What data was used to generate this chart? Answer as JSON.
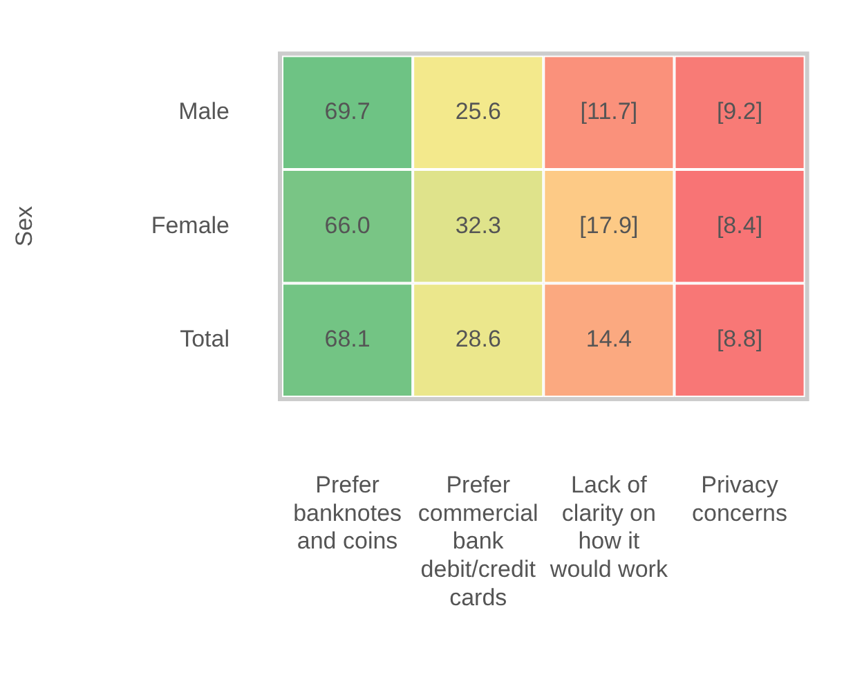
{
  "chart_data": {
    "type": "heatmap",
    "ylabel": "Sex",
    "categories": [
      "Prefer banknotes and coins",
      "Prefer commercial bank debit/credit cards",
      "Lack of clarity on how it would work",
      "Privacy concerns"
    ],
    "y_categories": [
      "Male",
      "Female",
      "Total"
    ],
    "cells": [
      [
        69.7,
        25.6,
        11.7,
        9.2
      ],
      [
        66.0,
        32.3,
        17.9,
        8.4
      ],
      [
        68.1,
        28.6,
        14.4,
        8.8
      ]
    ],
    "cell_labels": [
      [
        "69.7",
        "25.6",
        "[11.7]",
        "[9.2]"
      ],
      [
        "66.0",
        "32.3",
        "[17.9]",
        "[8.4]"
      ],
      [
        "68.1",
        "28.6",
        "14.4",
        "[8.8]"
      ]
    ]
  }
}
